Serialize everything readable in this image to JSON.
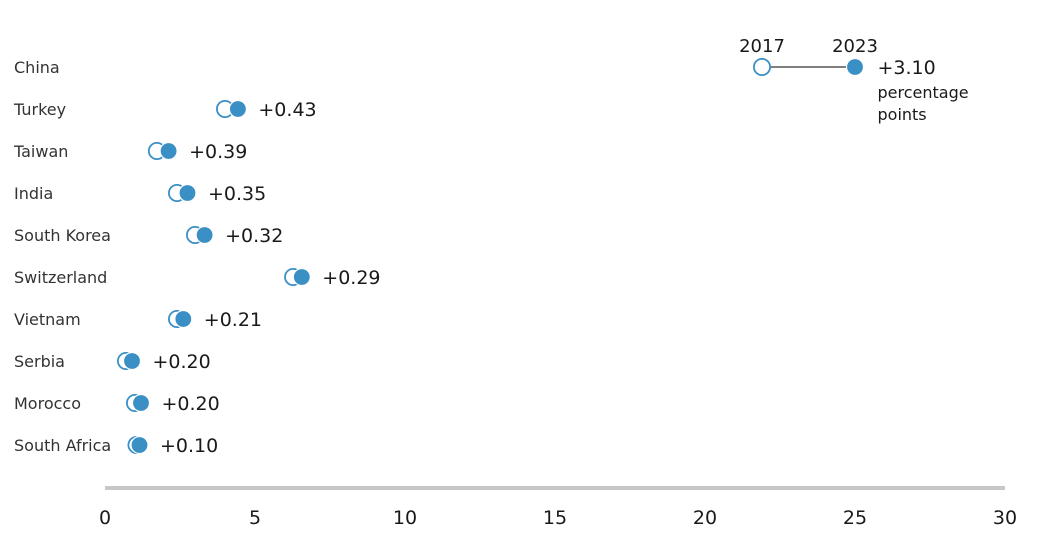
{
  "chart_data": {
    "type": "dumbbell",
    "series": [
      {
        "name": "2017",
        "marker": "hollow-circle"
      },
      {
        "name": "2023",
        "marker": "filled-circle"
      }
    ],
    "unit_label": "percentage points",
    "xlim": [
      0,
      30
    ],
    "x_ticks": [
      "0",
      "5",
      "10",
      "15",
      "20",
      "25",
      "30"
    ],
    "grid": false,
    "colors": {
      "accent": "#3a8fc5",
      "text": "#1a1a1a",
      "axis": "#c8c8c8",
      "connector": "#555555"
    },
    "rows": [
      {
        "country": "China",
        "v2017": 21.9,
        "v2023": 25.0,
        "change": "+3.10"
      },
      {
        "country": "Turkey",
        "v2017": 4.0,
        "v2023": 4.43,
        "change": "+0.43"
      },
      {
        "country": "Taiwan",
        "v2017": 1.73,
        "v2023": 2.12,
        "change": "+0.39"
      },
      {
        "country": "India",
        "v2017": 2.4,
        "v2023": 2.75,
        "change": "+0.35"
      },
      {
        "country": "South Korea",
        "v2017": 3.0,
        "v2023": 3.32,
        "change": "+0.32"
      },
      {
        "country": "Switzerland",
        "v2017": 6.27,
        "v2023": 6.56,
        "change": "+0.29"
      },
      {
        "country": "Vietnam",
        "v2017": 2.4,
        "v2023": 2.61,
        "change": "+0.21"
      },
      {
        "country": "Serbia",
        "v2017": 0.7,
        "v2023": 0.9,
        "change": "+0.20"
      },
      {
        "country": "Morocco",
        "v2017": 1.0,
        "v2023": 1.2,
        "change": "+0.20"
      },
      {
        "country": "South Africa",
        "v2017": 1.05,
        "v2023": 1.15,
        "change": "+0.10"
      }
    ]
  }
}
